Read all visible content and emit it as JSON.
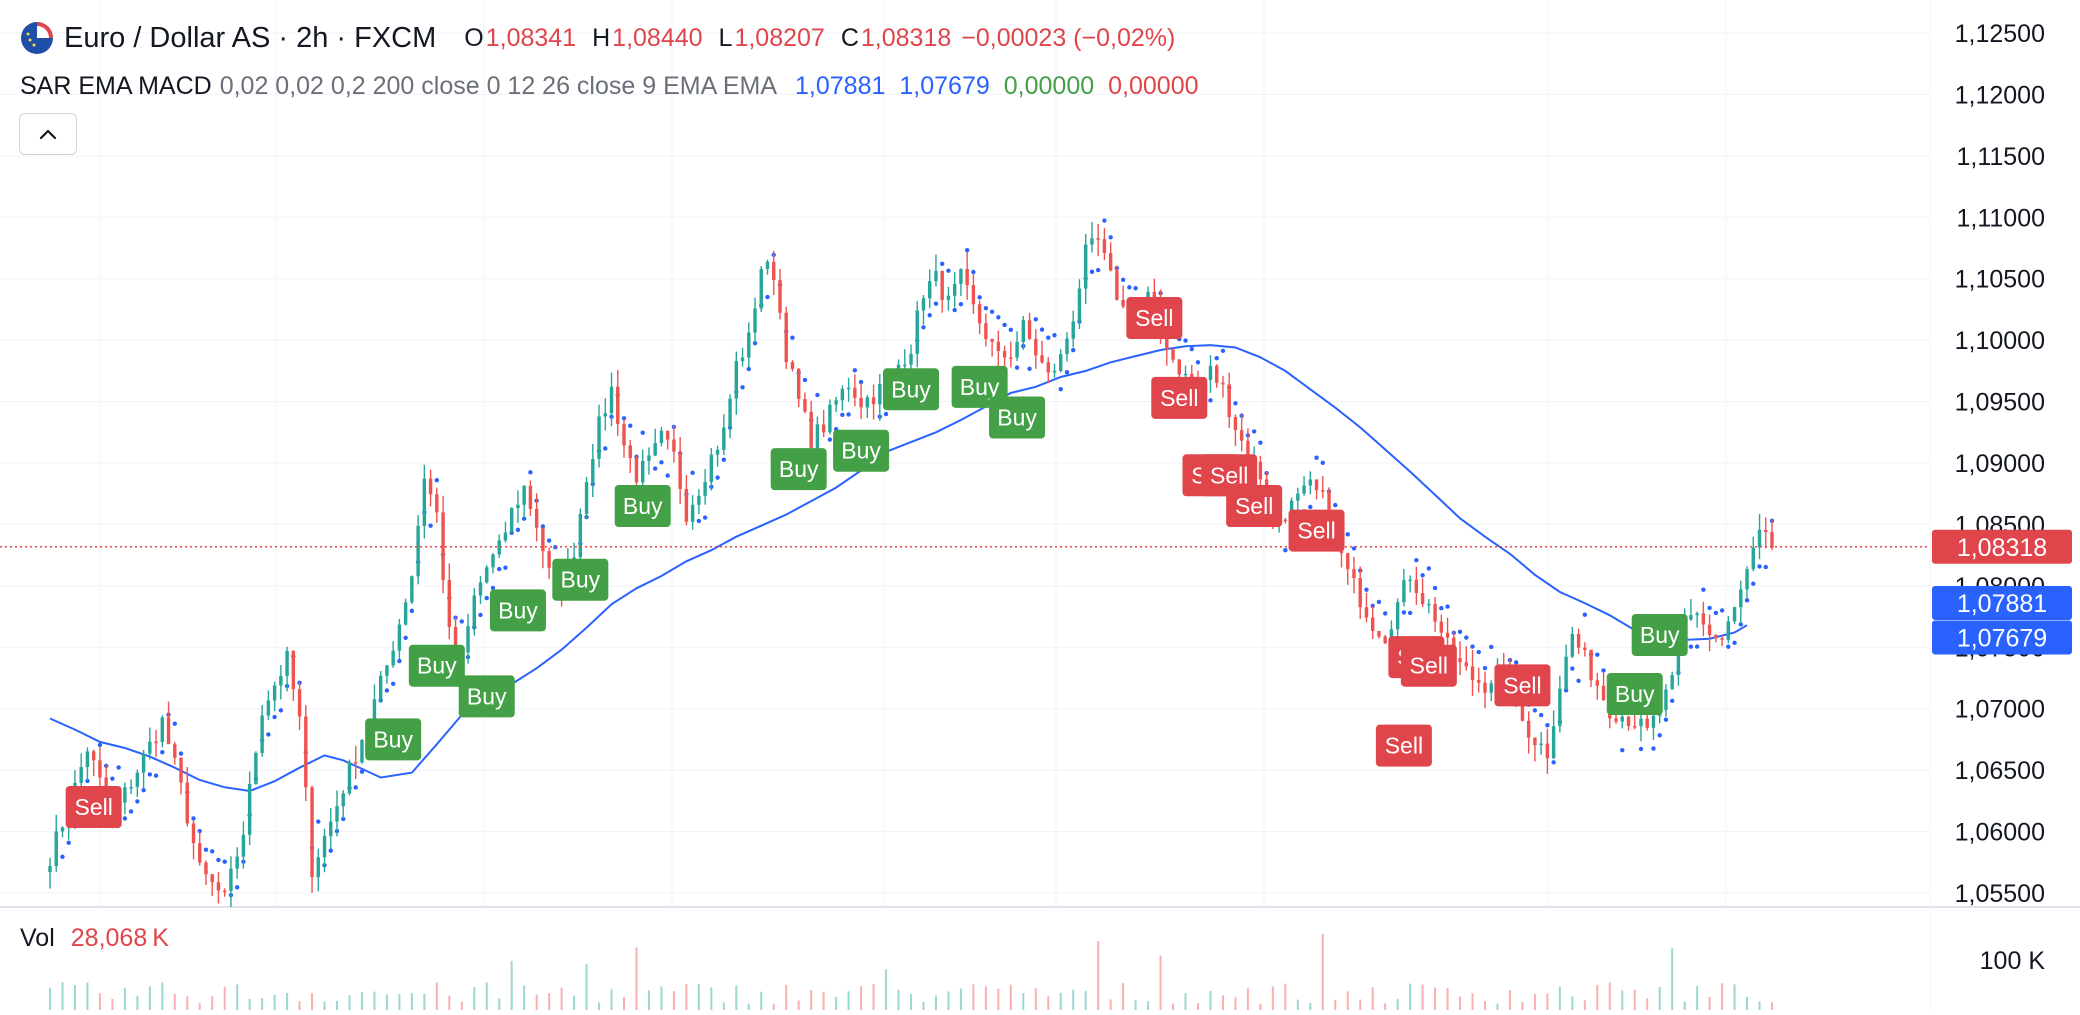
{
  "symbol": {
    "title": "Euro / Dollar AS · 2h · FXCM",
    "icon": "eur-usd-flag-icon"
  },
  "ohlc": {
    "o_label": "O",
    "o": "1,08341",
    "h_label": "H",
    "h": "1,08440",
    "l_label": "L",
    "l": "1,08207",
    "c_label": "C",
    "c": "1,08318",
    "change": "−0,00023 (−0,02%)"
  },
  "indicator": {
    "name": "SAR EMA MACD",
    "params": "0,02 0,02 0,2 200 close 0 12 26 close 9 EMA EMA",
    "values": [
      "1,07881",
      "1,07679",
      "0,00000",
      "0,00000"
    ],
    "value_colors": [
      "#2962ff",
      "#2962ff",
      "#43a047",
      "#e0454c"
    ]
  },
  "volume": {
    "label": "Vol",
    "value": "28,068 K",
    "axis_label": "100 K"
  },
  "price_axis": {
    "ticks": [
      "1,12500",
      "1,12000",
      "1,11500",
      "1,11000",
      "1,10500",
      "1,10000",
      "1,09500",
      "1,09000",
      "1,08500",
      "1,08000",
      "1,07500",
      "1,07000",
      "1,06500",
      "1,06000",
      "1,05500"
    ],
    "current_price": "1,08318",
    "ema_label_1": "1,07881",
    "ema_label_2": "1,07679"
  },
  "colors": {
    "up": "#26a69a",
    "down": "#ef5350",
    "ema": "#2962ff",
    "sar": "#2962ff",
    "buy_badge": "#43a047",
    "sell_badge": "#e0454c",
    "price_line": "#e0454c",
    "grid": "#f0f3fa"
  },
  "chart_data": {
    "type": "candlestick",
    "y_range": [
      1.053,
      1.128
    ],
    "price_line": 1.08318,
    "ema_points": [
      [
        0,
        1.0692
      ],
      [
        4,
        1.0683
      ],
      [
        8,
        1.0673
      ],
      [
        12,
        1.0668
      ],
      [
        16,
        1.0661
      ],
      [
        20,
        1.0652
      ],
      [
        24,
        1.0642
      ],
      [
        28,
        1.0636
      ],
      [
        32,
        1.0633
      ],
      [
        36,
        1.0641
      ],
      [
        40,
        1.0652
      ],
      [
        44,
        1.0662
      ],
      [
        47,
        1.0658
      ],
      [
        50,
        1.0651
      ],
      [
        53,
        1.0644
      ],
      [
        58,
        1.0648
      ],
      [
        62,
        1.0671
      ],
      [
        66,
        1.0695
      ],
      [
        70,
        1.0712
      ],
      [
        74,
        1.072
      ],
      [
        78,
        1.0733
      ],
      [
        82,
        1.0748
      ],
      [
        86,
        1.0766
      ],
      [
        90,
        1.0785
      ],
      [
        94,
        1.0798
      ],
      [
        98,
        1.0808
      ],
      [
        102,
        1.082
      ],
      [
        106,
        1.0829
      ],
      [
        110,
        1.084
      ],
      [
        114,
        1.0849
      ],
      [
        118,
        1.0858
      ],
      [
        122,
        1.0869
      ],
      [
        126,
        1.088
      ],
      [
        130,
        1.0894
      ],
      [
        134,
        1.0909
      ],
      [
        138,
        1.0917
      ],
      [
        142,
        1.0925
      ],
      [
        146,
        1.0935
      ],
      [
        150,
        1.0946
      ],
      [
        154,
        1.0957
      ],
      [
        158,
        1.0962
      ],
      [
        162,
        1.097
      ],
      [
        166,
        1.0975
      ],
      [
        170,
        1.0982
      ],
      [
        174,
        1.0987
      ],
      [
        178,
        1.0992
      ],
      [
        182,
        1.0995
      ],
      [
        186,
        1.0996
      ],
      [
        190,
        1.0994
      ],
      [
        194,
        1.0986
      ],
      [
        198,
        1.0975
      ],
      [
        202,
        1.096
      ],
      [
        206,
        1.0945
      ],
      [
        210,
        1.0929
      ],
      [
        214,
        1.0911
      ],
      [
        218,
        1.0893
      ],
      [
        222,
        1.0874
      ],
      [
        226,
        1.0855
      ],
      [
        230,
        1.084
      ],
      [
        234,
        1.0826
      ],
      [
        238,
        1.0809
      ],
      [
        242,
        1.0795
      ],
      [
        246,
        1.0786
      ],
      [
        250,
        1.0776
      ],
      [
        254,
        1.0764
      ],
      [
        258,
        1.0758
      ],
      [
        262,
        1.0756
      ],
      [
        266,
        1.0757
      ],
      [
        270,
        1.0762
      ],
      [
        272,
        1.0768
      ]
    ],
    "candle_anchors": [
      [
        0,
        1.058
      ],
      [
        3,
        1.062
      ],
      [
        6,
        1.0668
      ],
      [
        8,
        1.064
      ],
      [
        10,
        1.0612
      ],
      [
        14,
        1.065
      ],
      [
        18,
        1.069
      ],
      [
        21,
        1.0635
      ],
      [
        24,
        1.0568
      ],
      [
        28,
        1.0545
      ],
      [
        31,
        1.06
      ],
      [
        34,
        1.07
      ],
      [
        38,
        1.074
      ],
      [
        40,
        1.069
      ],
      [
        42,
        1.057
      ],
      [
        45,
        1.0608
      ],
      [
        48,
        1.065
      ],
      [
        51,
        1.069
      ],
      [
        54,
        1.0735
      ],
      [
        56,
        1.077
      ],
      [
        58,
        1.081
      ],
      [
        60,
        1.089
      ],
      [
        62,
        1.0858
      ],
      [
        64,
        1.076
      ],
      [
        66,
        1.074
      ],
      [
        68,
        1.079
      ],
      [
        70,
        1.0815
      ],
      [
        72,
        1.083
      ],
      [
        74,
        1.086
      ],
      [
        76,
        1.088
      ],
      [
        78,
        1.085
      ],
      [
        80,
        1.081
      ],
      [
        82,
        1.08
      ],
      [
        84,
        1.083
      ],
      [
        86,
        1.089
      ],
      [
        88,
        1.093
      ],
      [
        90,
        1.096
      ],
      [
        92,
        1.0915
      ],
      [
        94,
        1.089
      ],
      [
        96,
        1.09
      ],
      [
        98,
        1.092
      ],
      [
        100,
        1.0905
      ],
      [
        102,
        1.086
      ],
      [
        104,
        1.088
      ],
      [
        106,
        1.0905
      ],
      [
        108,
        1.0925
      ],
      [
        110,
        1.098
      ],
      [
        112,
        1.1
      ],
      [
        114,
        1.106
      ],
      [
        116,
        1.1055
      ],
      [
        118,
        1.099
      ],
      [
        120,
        1.095
      ],
      [
        122,
        1.092
      ],
      [
        124,
        1.093
      ],
      [
        126,
        1.095
      ],
      [
        128,
        1.0965
      ],
      [
        130,
        1.095
      ],
      [
        132,
        1.0955
      ],
      [
        134,
        1.0965
      ],
      [
        136,
        1.098
      ],
      [
        138,
        1.0995
      ],
      [
        140,
        1.104
      ],
      [
        142,
        1.105
      ],
      [
        144,
        1.103
      ],
      [
        146,
        1.105
      ],
      [
        148,
        1.1025
      ],
      [
        150,
        1.1005
      ],
      [
        152,
        1.0985
      ],
      [
        154,
        1.099
      ],
      [
        156,
        1.101
      ],
      [
        158,
        1.099
      ],
      [
        160,
        1.097
      ],
      [
        162,
        1.0985
      ],
      [
        164,
        1.102
      ],
      [
        166,
        1.107
      ],
      [
        168,
        1.108
      ],
      [
        170,
        1.105
      ],
      [
        172,
        1.1025
      ],
      [
        174,
        1.1015
      ],
      [
        176,
        1.1035
      ],
      [
        178,
        1.101
      ],
      [
        180,
        1.0985
      ],
      [
        182,
        1.097
      ],
      [
        184,
        1.096
      ],
      [
        186,
        1.0975
      ],
      [
        188,
        1.096
      ],
      [
        190,
        1.093
      ],
      [
        192,
        1.0905
      ],
      [
        194,
        1.089
      ],
      [
        196,
        1.085
      ],
      [
        198,
        1.086
      ],
      [
        200,
        1.087
      ],
      [
        202,
        1.088
      ],
      [
        204,
        1.087
      ],
      [
        206,
        1.084
      ],
      [
        208,
        1.081
      ],
      [
        210,
        1.079
      ],
      [
        212,
        1.077
      ],
      [
        214,
        1.076
      ],
      [
        216,
        1.0785
      ],
      [
        218,
        1.081
      ],
      [
        220,
        1.079
      ],
      [
        222,
        1.0775
      ],
      [
        224,
        1.075
      ],
      [
        226,
        1.0735
      ],
      [
        228,
        1.0725
      ],
      [
        230,
        1.072
      ],
      [
        232,
        1.073
      ],
      [
        234,
        1.072
      ],
      [
        236,
        1.069
      ],
      [
        238,
        1.0675
      ],
      [
        240,
        1.0665
      ],
      [
        242,
        1.072
      ],
      [
        244,
        1.076
      ],
      [
        246,
        1.074
      ],
      [
        248,
        1.072
      ],
      [
        250,
        1.07
      ],
      [
        252,
        1.0695
      ],
      [
        254,
        1.069
      ],
      [
        256,
        1.068
      ],
      [
        258,
        1.07
      ],
      [
        260,
        1.072
      ],
      [
        262,
        1.077
      ],
      [
        264,
        1.078
      ],
      [
        266,
        1.076
      ],
      [
        268,
        1.0755
      ],
      [
        270,
        1.078
      ],
      [
        272,
        1.081
      ],
      [
        274,
        1.084
      ],
      [
        276,
        1.0832
      ]
    ],
    "signals": [
      {
        "type": "Sell",
        "i": 7,
        "price": 1.062
      },
      {
        "type": "Buy",
        "i": 55,
        "price": 1.0675
      },
      {
        "type": "Buy",
        "i": 62,
        "price": 1.0735
      },
      {
        "type": "Buy",
        "i": 70,
        "price": 1.071
      },
      {
        "type": "Buy",
        "i": 75,
        "price": 1.078
      },
      {
        "type": "Buy",
        "i": 85,
        "price": 1.0805
      },
      {
        "type": "Buy",
        "i": 95,
        "price": 1.0865
      },
      {
        "type": "Buy",
        "i": 120,
        "price": 1.0895
      },
      {
        "type": "Buy",
        "i": 130,
        "price": 1.091
      },
      {
        "type": "Buy",
        "i": 138,
        "price": 1.096
      },
      {
        "type": "Buy",
        "i": 149,
        "price": 1.0962
      },
      {
        "type": "Buy",
        "i": 155,
        "price": 1.0937
      },
      {
        "type": "Sell",
        "i": 177,
        "price": 1.1018
      },
      {
        "type": "Sell",
        "i": 181,
        "price": 1.0953
      },
      {
        "type": "Sell",
        "i": 186,
        "price": 1.089
      },
      {
        "type": "Sell",
        "i": 189,
        "price": 1.089
      },
      {
        "type": "Sell",
        "i": 193,
        "price": 1.0865
      },
      {
        "type": "Sell",
        "i": 203,
        "price": 1.0845
      },
      {
        "type": "Sell",
        "i": 217,
        "price": 1.067
      },
      {
        "type": "Sell",
        "i": 219,
        "price": 1.0742
      },
      {
        "type": "Sell",
        "i": 221,
        "price": 1.0735
      },
      {
        "type": "Sell",
        "i": 236,
        "price": 1.0719
      },
      {
        "type": "Buy",
        "i": 254,
        "price": 1.0712
      },
      {
        "type": "Buy",
        "i": 258,
        "price": 1.076
      }
    ]
  }
}
